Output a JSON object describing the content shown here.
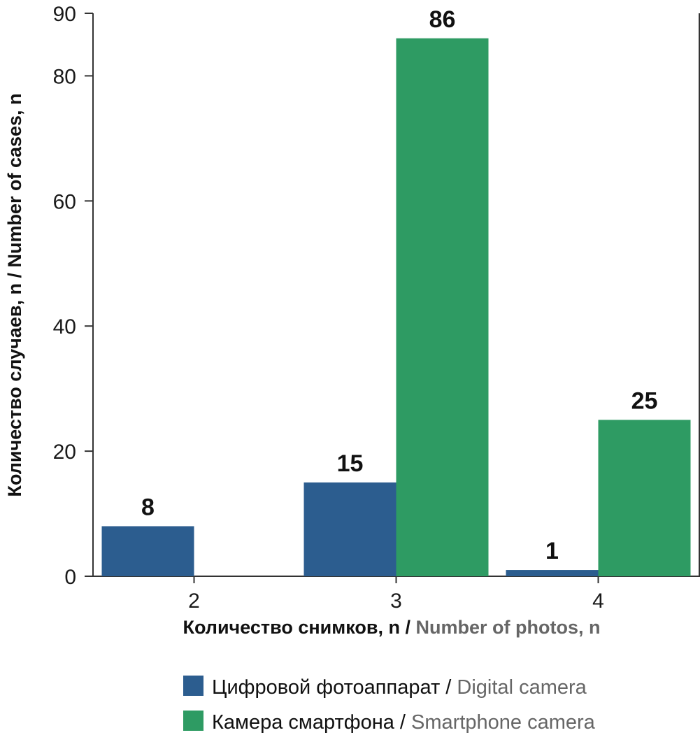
{
  "chart_data": {
    "type": "bar",
    "categories": [
      "2",
      "3",
      "4"
    ],
    "series": [
      {
        "name": "Цифровой фотоаппарат / Digital camera",
        "values": [
          8,
          15,
          1
        ],
        "color": "#2c5d8f"
      },
      {
        "name": "Камера смартфона / Smartphone camera",
        "values": [
          null,
          86,
          25
        ],
        "color": "#2e9b63"
      }
    ],
    "ylim": [
      0,
      90
    ],
    "yticks": [
      0,
      20,
      40,
      60,
      80,
      90
    ],
    "xlabel": {
      "ru": "Количество снимков, n / ",
      "en": "Number of photos, n"
    },
    "ylabel": "Количество случаев, n / Number of cases, n",
    "legend": [
      {
        "ru": "Цифровой фотоаппарат / ",
        "en": "Digital camera",
        "color": "#2c5d8f"
      },
      {
        "ru": "Камера смартфона / ",
        "en": "Smartphone camera",
        "color": "#2e9b63"
      }
    ],
    "legend_position": "bottom",
    "grid": false
  }
}
